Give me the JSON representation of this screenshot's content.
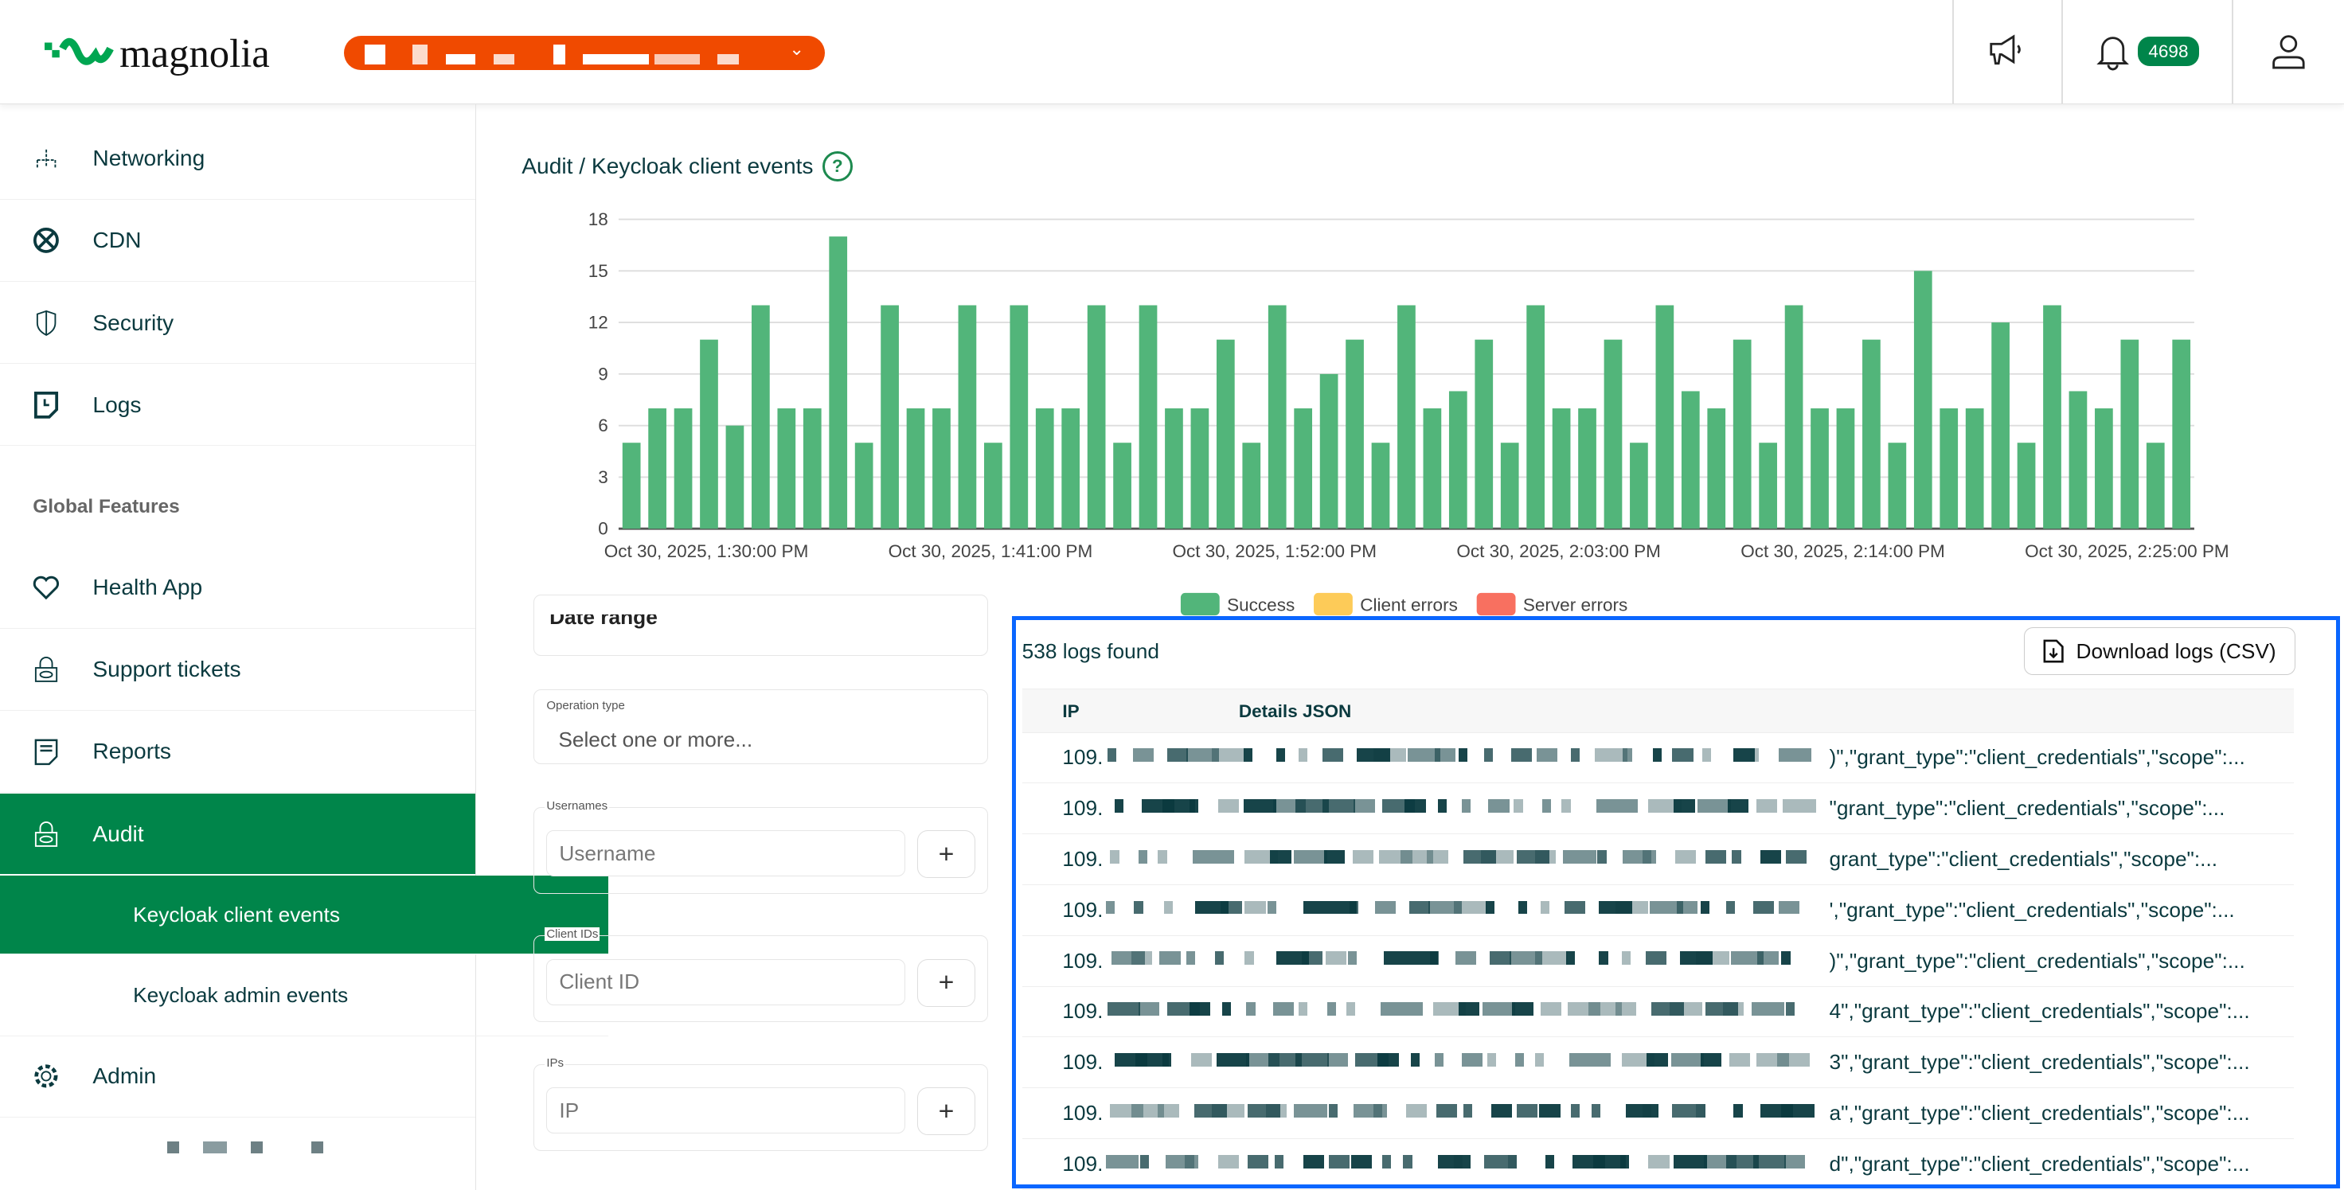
{
  "header": {
    "logo_text": "magnolia",
    "tenant_selector": "redacted",
    "notifications_count": "4698",
    "icons": [
      "megaphone-icon",
      "bell-icon",
      "user-icon"
    ]
  },
  "sidebar": {
    "items": [
      {
        "label": "Networking",
        "icon": "network-icon"
      },
      {
        "label": "CDN",
        "icon": "globe-icon"
      },
      {
        "label": "Security",
        "icon": "shield-icon"
      },
      {
        "label": "Logs",
        "icon": "log-file-icon"
      }
    ],
    "section_label": "Global Features",
    "global_items": [
      {
        "label": "Health App",
        "icon": "heart-icon"
      },
      {
        "label": "Support tickets",
        "icon": "lock-eye-icon"
      },
      {
        "label": "Reports",
        "icon": "report-icon"
      },
      {
        "label": "Audit",
        "icon": "lock-eye-icon",
        "active": true
      },
      {
        "label": "Keycloak client events",
        "active": true
      },
      {
        "label": "Keycloak admin events"
      },
      {
        "label": "Admin",
        "icon": "gear-icon"
      }
    ]
  },
  "page": {
    "title": "Audit / Keycloak client events",
    "help": "?"
  },
  "colors": {
    "accent": "#00854a",
    "success": "#52b57a",
    "client_errors": "#fdcb58",
    "server_errors": "#f87060",
    "tenant": "#f04a00",
    "highlight": "#0a66ff"
  },
  "chart_data": {
    "type": "bar",
    "stacked": true,
    "y_ticks": [
      "0",
      "3",
      "6",
      "9",
      "12",
      "15",
      "18"
    ],
    "ylim": [
      0,
      18
    ],
    "grid": true,
    "x_tick_labels": [
      "Oct 30, 2025, 1:30:00 PM",
      "Oct 30, 2025, 1:41:00 PM",
      "Oct 30, 2025, 1:52:00 PM",
      "Oct 30, 2025, 2:03:00 PM",
      "Oct 30, 2025, 2:14:00 PM",
      "Oct 30, 2025, 2:25:00 PM"
    ],
    "x_interval": "1 minute",
    "legend_position": "bottom",
    "series": [
      {
        "name": "Success",
        "color": "#52b57a",
        "values": [
          5,
          7,
          7,
          11,
          6,
          13,
          7,
          7,
          17,
          5,
          13,
          7,
          7,
          13,
          5,
          13,
          7,
          7,
          13,
          5,
          13,
          7,
          7,
          11,
          5,
          13,
          7,
          9,
          11,
          5,
          13,
          7,
          8,
          11,
          5,
          13,
          7,
          7,
          11,
          5,
          13,
          8,
          7,
          11,
          5,
          13,
          7,
          7,
          11,
          5,
          15,
          7,
          7,
          12,
          5,
          13,
          8,
          7,
          11,
          5,
          11
        ]
      },
      {
        "name": "Client errors",
        "color": "#fdcb58",
        "values": []
      },
      {
        "name": "Server errors",
        "color": "#f87060",
        "values": []
      }
    ]
  },
  "filters": {
    "date_range_label": "Date range",
    "operation_type": {
      "label": "Operation type",
      "placeholder": "Select one or more..."
    },
    "usernames": {
      "label": "Usernames",
      "placeholder": "Username",
      "add": "+"
    },
    "client_ids": {
      "label": "Client IDs",
      "placeholder": "Client ID",
      "add": "+"
    },
    "ips": {
      "label": "IPs",
      "placeholder": "IP",
      "add": "+"
    }
  },
  "results": {
    "count_text": "538 logs found",
    "download_label": "Download logs (CSV)",
    "columns": [
      "IP",
      "Details JSON"
    ],
    "rows": [
      {
        "ip": "109.",
        "json": ")\",\"grant_type\":\"client_credentials\",\"scope\":..."
      },
      {
        "ip": "109.",
        "json": "\"grant_type\":\"client_credentials\",\"scope\":..."
      },
      {
        "ip": "109.",
        "json": "grant_type\":\"client_credentials\",\"scope\":..."
      },
      {
        "ip": "109.",
        "json": "',\"grant_type\":\"client_credentials\",\"scope\":..."
      },
      {
        "ip": "109.",
        "json": ")\",\"grant_type\":\"client_credentials\",\"scope\":..."
      },
      {
        "ip": "109.",
        "json": "4\",\"grant_type\":\"client_credentials\",\"scope\":..."
      },
      {
        "ip": "109.",
        "json": "3\",\"grant_type\":\"client_credentials\",\"scope\":..."
      },
      {
        "ip": "109.",
        "json": "a\",\"grant_type\":\"client_credentials\",\"scope\":..."
      },
      {
        "ip": "109.",
        "json": "d\",\"grant_type\":\"client_credentials\",\"scope\":..."
      }
    ]
  }
}
